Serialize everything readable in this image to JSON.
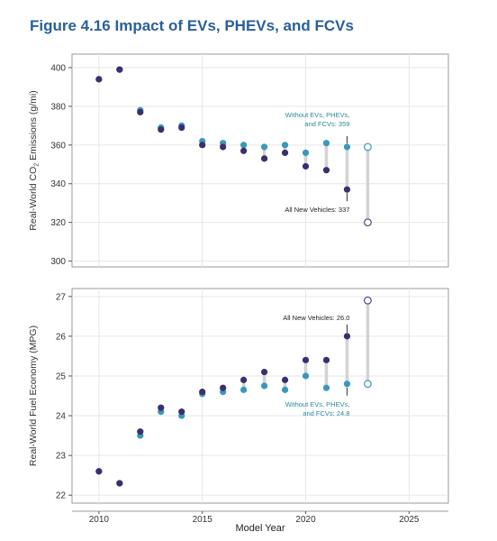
{
  "figure_title": "Figure 4.16 Impact of EVs, PHEVs, and FCVs",
  "colors": {
    "title": "#2a6099",
    "all_new": "#3b2f6e",
    "without": "#3a98b9",
    "bar": "#d3d3d3",
    "teal_text": "#2a8a9a"
  },
  "chart_data": [
    {
      "type": "scatter",
      "id": "co2",
      "ylabel_main": "Real-World CO",
      "ylabel_sub": "2",
      "ylabel_end": " Emissions (g/mi)",
      "xlabel": "",
      "xlim": [
        2008.7,
        2026.9
      ],
      "ylim": [
        297,
        407
      ],
      "yticks": [
        300,
        320,
        340,
        360,
        380,
        400
      ],
      "xticks": [
        2010,
        2015,
        2020,
        2025
      ],
      "grid": true,
      "series": [
        {
          "role": "all_new",
          "x": [
            2010,
            2011,
            2012,
            2013,
            2014,
            2015,
            2016,
            2017,
            2018,
            2019,
            2020,
            2021,
            2022
          ],
          "y": [
            394,
            399,
            377,
            368,
            369,
            360,
            359,
            357,
            353,
            356,
            349,
            347,
            337
          ]
        },
        {
          "role": "without",
          "x": [
            2010,
            2011,
            2012,
            2013,
            2014,
            2015,
            2016,
            2017,
            2018,
            2019,
            2020,
            2021,
            2022
          ],
          "y": [
            394,
            399,
            378,
            369,
            370,
            362,
            361,
            360,
            359,
            360,
            356,
            361,
            359
          ]
        }
      ],
      "projection": {
        "x": 2023,
        "top": 359,
        "bottom": 320
      },
      "annotations": [
        {
          "lines": [
            "Without EVs, PHEVs,",
            "and FCVs: 359"
          ],
          "color": "teal"
        },
        {
          "lines": [
            "All New Vehicles: 337"
          ],
          "color": "dark"
        }
      ]
    },
    {
      "type": "scatter",
      "id": "mpg",
      "ylabel_main": "Real-World Fuel Economy (MPG)",
      "xlabel": "Model Year",
      "xlim": [
        2008.7,
        2026.9
      ],
      "ylim": [
        21.8,
        27.2
      ],
      "yticks": [
        22,
        23,
        24,
        25,
        26,
        27
      ],
      "xticks": [
        2010,
        2015,
        2020,
        2025
      ],
      "grid": true,
      "series": [
        {
          "role": "all_new",
          "x": [
            2010,
            2011,
            2012,
            2013,
            2014,
            2015,
            2016,
            2017,
            2018,
            2019,
            2020,
            2021,
            2022
          ],
          "y": [
            22.6,
            22.3,
            23.6,
            24.2,
            24.1,
            24.6,
            24.7,
            24.9,
            25.1,
            24.9,
            25.4,
            25.4,
            26.0
          ]
        },
        {
          "role": "without",
          "x": [
            2010,
            2011,
            2012,
            2013,
            2014,
            2015,
            2016,
            2017,
            2018,
            2019,
            2020,
            2021,
            2022
          ],
          "y": [
            22.6,
            22.3,
            23.5,
            24.1,
            24.0,
            24.55,
            24.6,
            24.65,
            24.75,
            24.65,
            25.0,
            24.7,
            24.8
          ]
        }
      ],
      "projection": {
        "x": 2023,
        "top": 26.9,
        "bottom": 24.8
      },
      "annotations": [
        {
          "lines": [
            "All New Vehicles: 26.0"
          ],
          "color": "dark"
        },
        {
          "lines": [
            "Without EVs, PHEVs,",
            "and FCVs: 24.8"
          ],
          "color": "teal"
        }
      ]
    }
  ]
}
